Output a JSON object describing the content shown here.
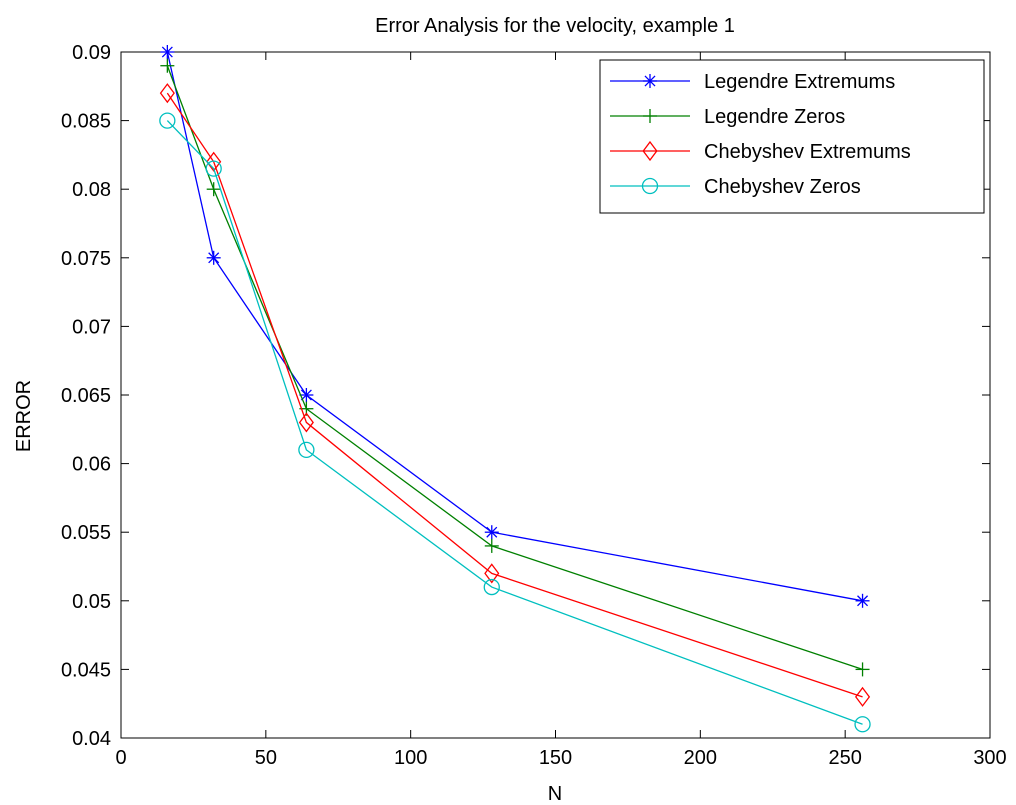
{
  "chart_data": {
    "type": "line",
    "title": "Error Analysis for the velocity, example 1",
    "xlabel": "N",
    "ylabel": "ERROR",
    "xlim": [
      0,
      300
    ],
    "ylim": [
      0.04,
      0.09
    ],
    "xticks": [
      0,
      50,
      100,
      150,
      200,
      250,
      300
    ],
    "xtick_labels": [
      "0",
      "50",
      "100",
      "150",
      "200",
      "250",
      "300"
    ],
    "yticks": [
      0.04,
      0.045,
      0.05,
      0.055,
      0.06,
      0.065,
      0.07,
      0.075,
      0.08,
      0.085,
      0.09
    ],
    "ytick_labels": [
      "0.04",
      "0.045",
      "0.05",
      "0.055",
      "0.06",
      "0.065",
      "0.07",
      "0.075",
      "0.08",
      "0.085",
      "0.09"
    ],
    "grid": false,
    "legend_position": "top-right",
    "series": [
      {
        "name": "Legendre Extremums",
        "color": "#0000ff",
        "marker": "asterisk",
        "x": [
          16,
          32,
          64,
          128,
          256
        ],
        "y": [
          0.09,
          0.075,
          0.065,
          0.055,
          0.05
        ]
      },
      {
        "name": "Legendre Zeros",
        "color": "#008000",
        "marker": "plus",
        "x": [
          16,
          32,
          64,
          128,
          256
        ],
        "y": [
          0.089,
          0.08,
          0.064,
          0.054,
          0.045
        ]
      },
      {
        "name": "Chebyshev Extremums",
        "color": "#ff0000",
        "marker": "diamond",
        "x": [
          16,
          32,
          64,
          128,
          256
        ],
        "y": [
          0.087,
          0.082,
          0.063,
          0.052,
          0.043
        ]
      },
      {
        "name": "Chebyshev Zeros",
        "color": "#00bfbf",
        "marker": "circle",
        "x": [
          16,
          32,
          64,
          128,
          256
        ],
        "y": [
          0.085,
          0.0815,
          0.061,
          0.051,
          0.041
        ]
      }
    ]
  }
}
